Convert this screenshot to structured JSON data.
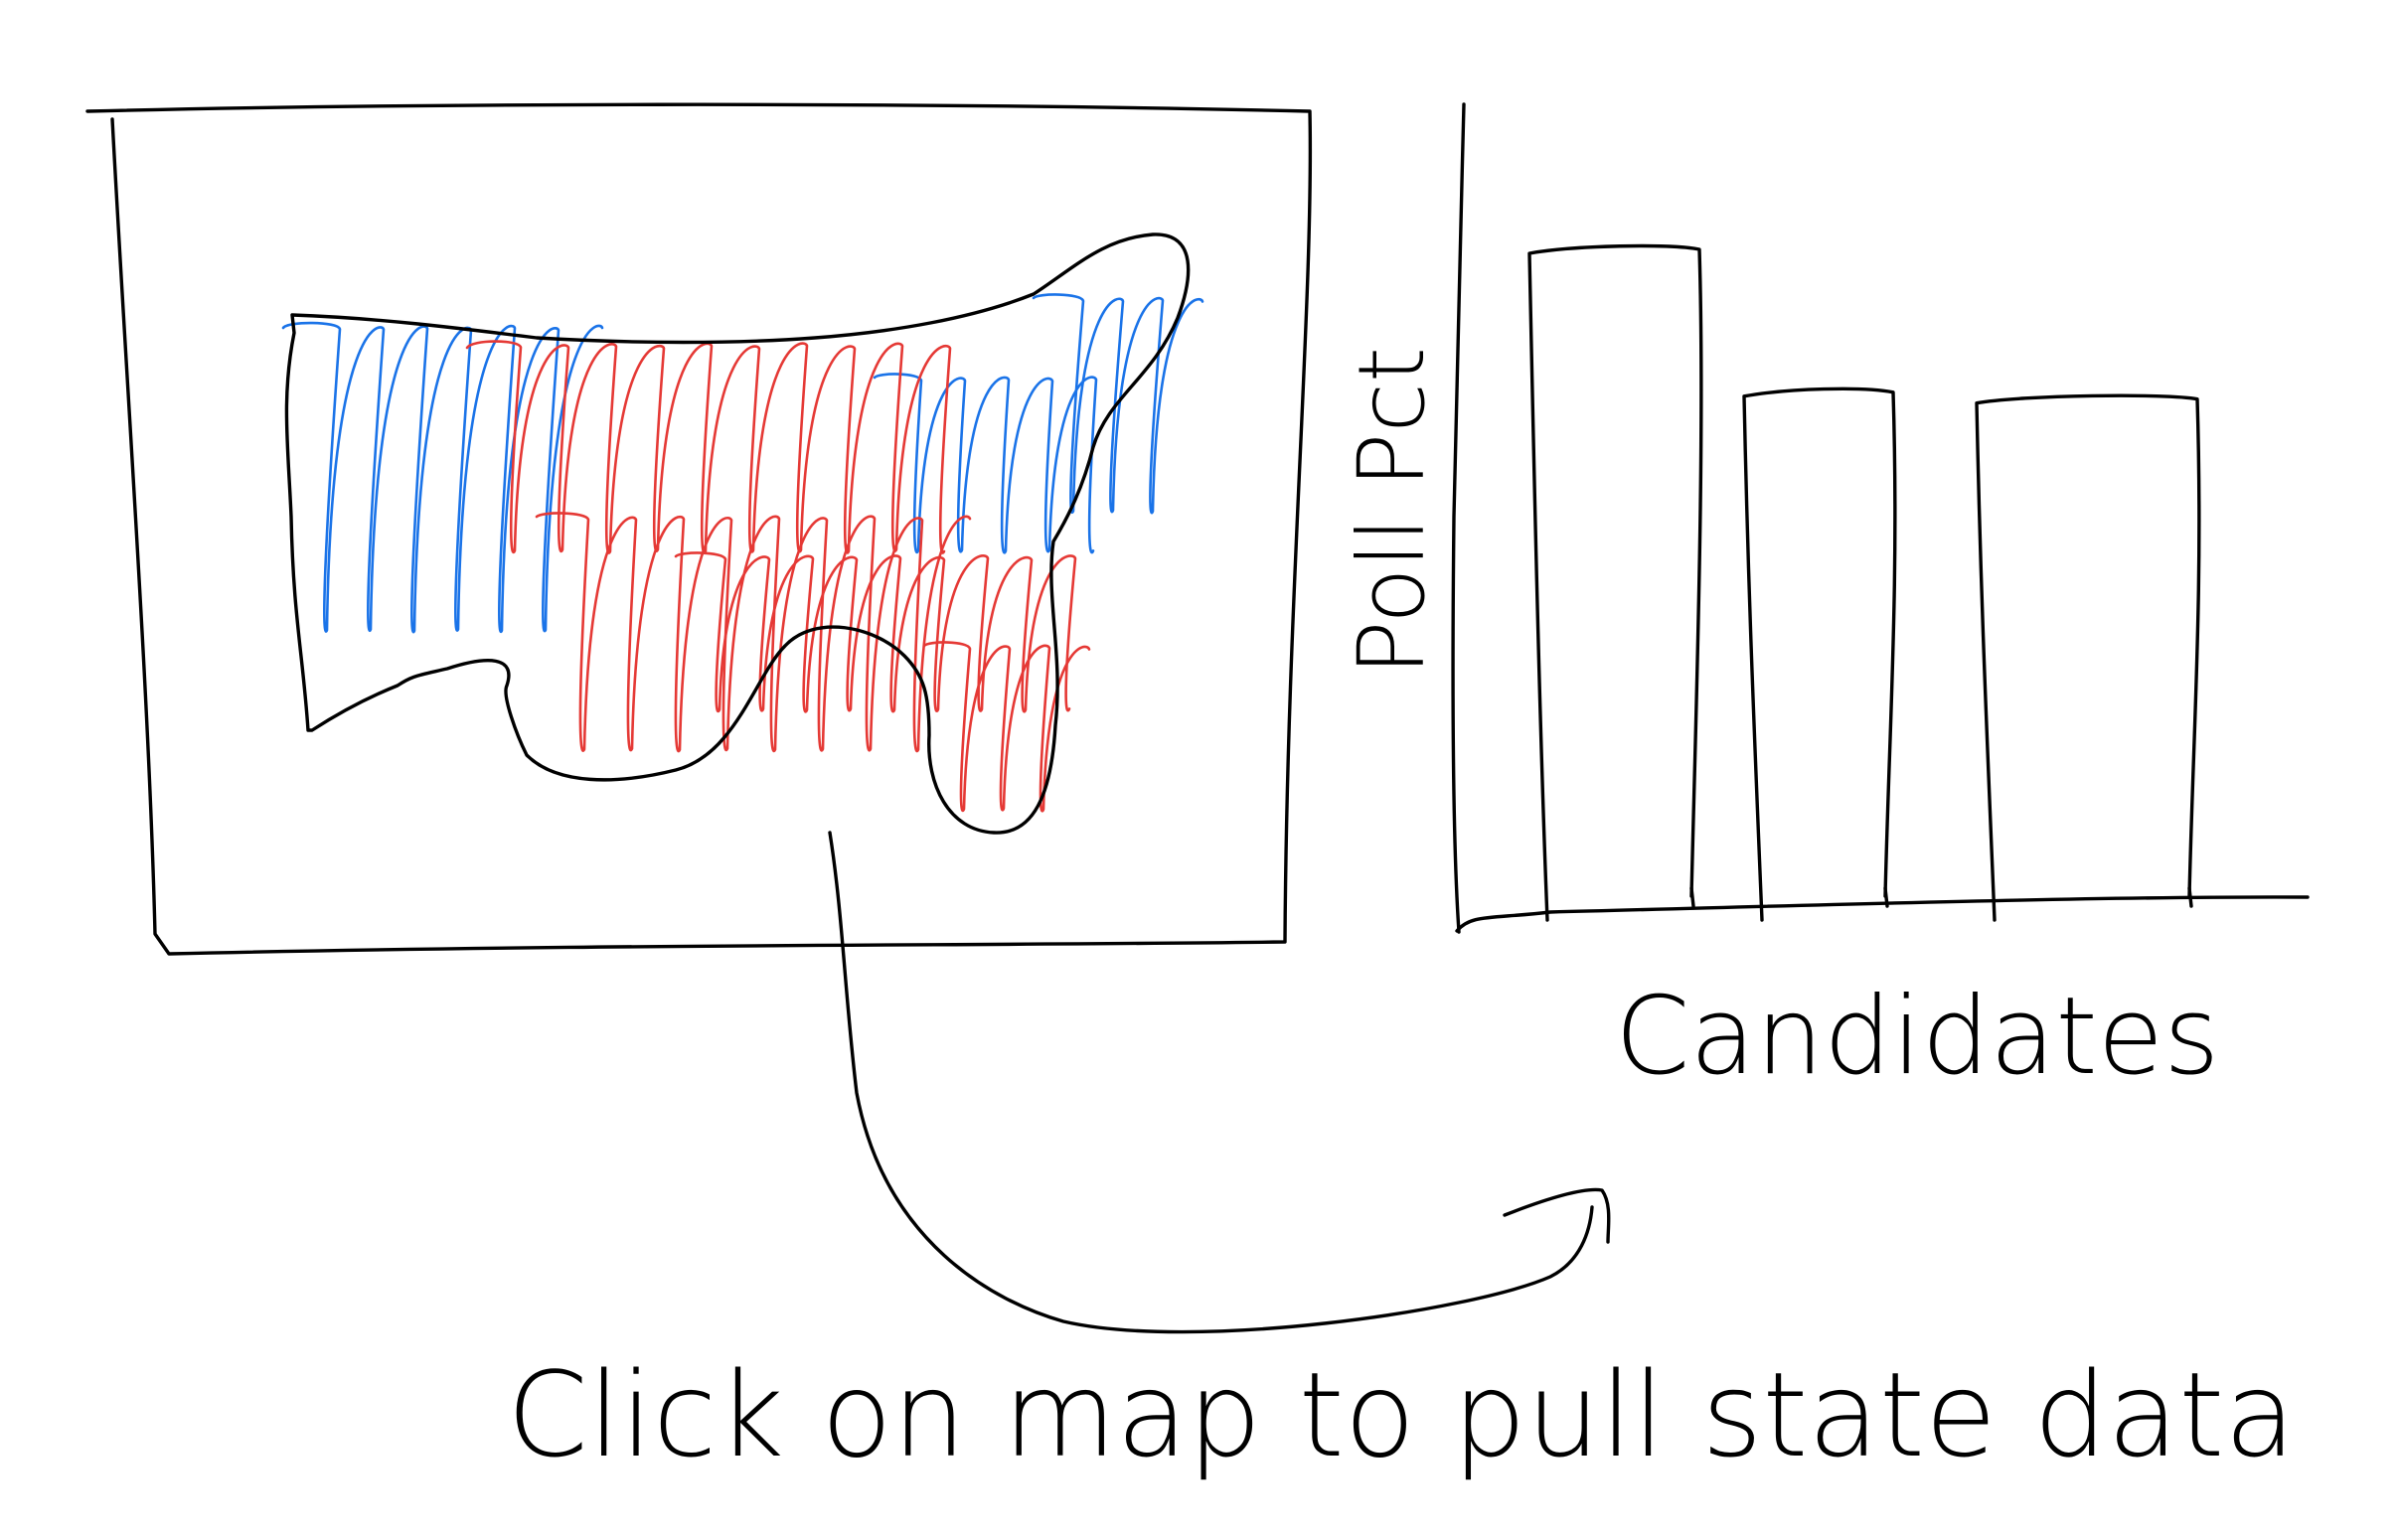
{
  "sketch": {
    "caption": "Click on map to pull state data",
    "ylabel": "Poll Pct",
    "xlabel": "Candidates",
    "colors": {
      "ink": "#000000",
      "democrat": "#1a73e8",
      "republican": "#e53935"
    },
    "map": {
      "region": "us-map",
      "state_colors": [
        "democrat",
        "republican"
      ]
    }
  },
  "chart_data": {
    "type": "bar",
    "categories": [
      "",
      "",
      ""
    ],
    "values": [
      100,
      79,
      78
    ],
    "xlabel": "Candidates",
    "ylabel": "Poll Pct",
    "ylim": [
      0,
      120
    ],
    "grid": false
  }
}
